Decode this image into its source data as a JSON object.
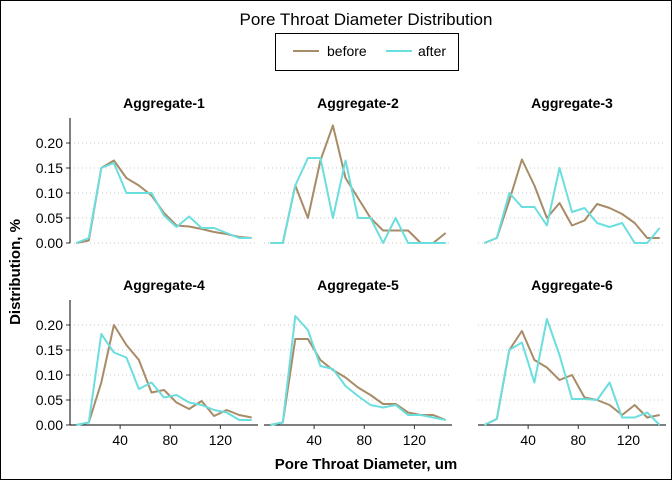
{
  "chart_data": {
    "type": "line",
    "title": "Pore Throat Diameter Distribution",
    "xlabel": "Pore Throat Diameter, um",
    "ylabel": "Distribution, %",
    "xlim": [
      0,
      150
    ],
    "ylim": [
      0,
      0.25
    ],
    "x_ticks": [
      40,
      80,
      120
    ],
    "x_tick_labels": [
      "40",
      "80",
      "120"
    ],
    "y_ticks": [
      0,
      0.05,
      0.1,
      0.15,
      0.2
    ],
    "y_tick_labels": [
      "0.00",
      "0.05",
      "0.10",
      "0.15",
      "0.20"
    ],
    "grid": "horizontal dotted",
    "legend": {
      "placement": "top-center",
      "entries": [
        {
          "name": "before",
          "color": "#A88B67"
        },
        {
          "name": "after",
          "color": "#6BDEDE"
        }
      ]
    },
    "x": [
      5,
      15,
      25,
      35,
      45,
      55,
      65,
      75,
      85,
      95,
      105,
      115,
      125,
      135,
      145
    ],
    "panels": [
      {
        "title": "Aggregate-1",
        "series": [
          {
            "name": "before",
            "values": [
              0.0,
              0.005,
              0.15,
              0.165,
              0.13,
              0.115,
              0.095,
              0.06,
              0.035,
              0.033,
              0.028,
              0.022,
              0.018,
              0.012,
              0.01
            ]
          },
          {
            "name": "after",
            "values": [
              0.0,
              0.01,
              0.15,
              0.16,
              0.1,
              0.1,
              0.1,
              0.055,
              0.032,
              0.053,
              0.03,
              0.03,
              0.02,
              0.01,
              0.01
            ]
          }
        ]
      },
      {
        "title": "Aggregate-2",
        "series": [
          {
            "name": "before",
            "values": [
              0.0,
              0.0,
              0.115,
              0.05,
              0.165,
              0.235,
              0.13,
              0.09,
              0.05,
              0.025,
              0.025,
              0.025,
              0.0,
              0.0,
              0.02
            ]
          },
          {
            "name": "after",
            "values": [
              0.0,
              0.0,
              0.115,
              0.17,
              0.17,
              0.05,
              0.165,
              0.05,
              0.05,
              0.0,
              0.05,
              0.0,
              0.0,
              0.0,
              0.0
            ]
          }
        ]
      },
      {
        "title": "Aggregate-3",
        "series": [
          {
            "name": "before",
            "values": [
              0.0,
              0.01,
              0.085,
              0.167,
              0.115,
              0.05,
              0.08,
              0.035,
              0.045,
              0.078,
              0.07,
              0.058,
              0.04,
              0.01,
              0.01
            ]
          },
          {
            "name": "after",
            "values": [
              0.0,
              0.01,
              0.1,
              0.072,
              0.072,
              0.035,
              0.15,
              0.062,
              0.07,
              0.04,
              0.032,
              0.04,
              0.0,
              0.0,
              0.03
            ]
          }
        ]
      },
      {
        "title": "Aggregate-4",
        "series": [
          {
            "name": "before",
            "values": [
              0.0,
              0.005,
              0.085,
              0.2,
              0.16,
              0.13,
              0.065,
              0.07,
              0.045,
              0.032,
              0.048,
              0.018,
              0.03,
              0.02,
              0.015
            ]
          },
          {
            "name": "after",
            "values": [
              0.0,
              0.005,
              0.182,
              0.145,
              0.135,
              0.072,
              0.085,
              0.055,
              0.06,
              0.045,
              0.04,
              0.03,
              0.025,
              0.01,
              0.01
            ]
          }
        ]
      },
      {
        "title": "Aggregate-5",
        "series": [
          {
            "name": "before",
            "values": [
              0.0,
              0.005,
              0.172,
              0.172,
              0.13,
              0.11,
              0.095,
              0.075,
              0.06,
              0.042,
              0.042,
              0.025,
              0.02,
              0.02,
              0.01
            ]
          },
          {
            "name": "after",
            "values": [
              0.0,
              0.005,
              0.218,
              0.19,
              0.118,
              0.112,
              0.078,
              0.058,
              0.04,
              0.035,
              0.04,
              0.02,
              0.02,
              0.015,
              0.01
            ]
          }
        ]
      },
      {
        "title": "Aggregate-6",
        "series": [
          {
            "name": "before",
            "values": [
              0.0,
              0.012,
              0.15,
              0.188,
              0.13,
              0.115,
              0.09,
              0.1,
              0.055,
              0.05,
              0.04,
              0.02,
              0.04,
              0.015,
              0.02
            ]
          },
          {
            "name": "after",
            "values": [
              0.0,
              0.012,
              0.15,
              0.165,
              0.085,
              0.212,
              0.14,
              0.052,
              0.052,
              0.05,
              0.085,
              0.015,
              0.015,
              0.025,
              0.0
            ]
          }
        ]
      }
    ]
  }
}
